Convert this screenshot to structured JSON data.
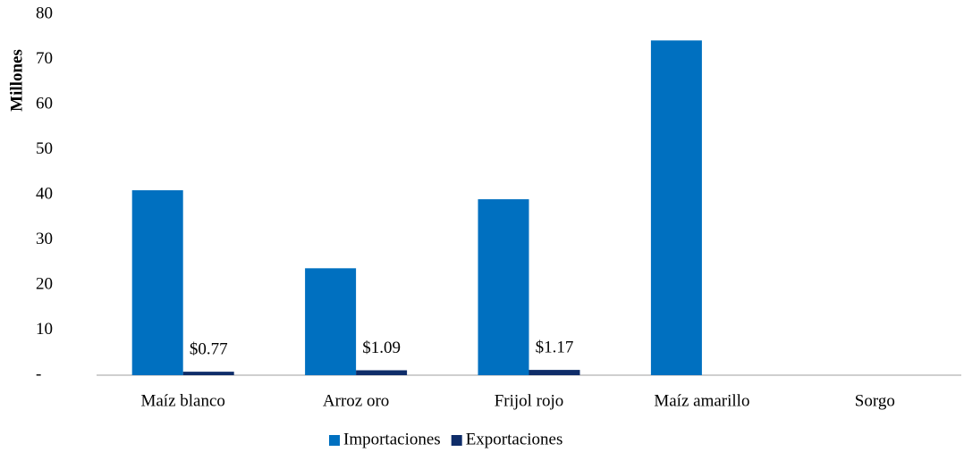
{
  "chart_data": {
    "type": "bar",
    "y_label": "Millones",
    "categories": [
      "Maíz blanco",
      "Arroz oro",
      "Frijol rojo",
      "Maíz amarillo",
      "Sorgo"
    ],
    "series": [
      {
        "name": "Importaciones",
        "color": "#0070c0",
        "values": [
          41,
          23.7,
          39,
          74.2,
          null
        ]
      },
      {
        "name": "Exportaciones",
        "color": "#0f2d69",
        "values": [
          0.77,
          1.09,
          1.17,
          null,
          null
        ],
        "value_labels": [
          "$0.77",
          "$1.09",
          "$1.17",
          null,
          null
        ]
      }
    ],
    "ylim": [
      0,
      80
    ],
    "yticks": [
      {
        "value": 0,
        "label": "-"
      },
      10,
      20,
      30,
      40,
      50,
      60,
      70,
      80
    ],
    "grid": false,
    "legend": "bottom"
  }
}
